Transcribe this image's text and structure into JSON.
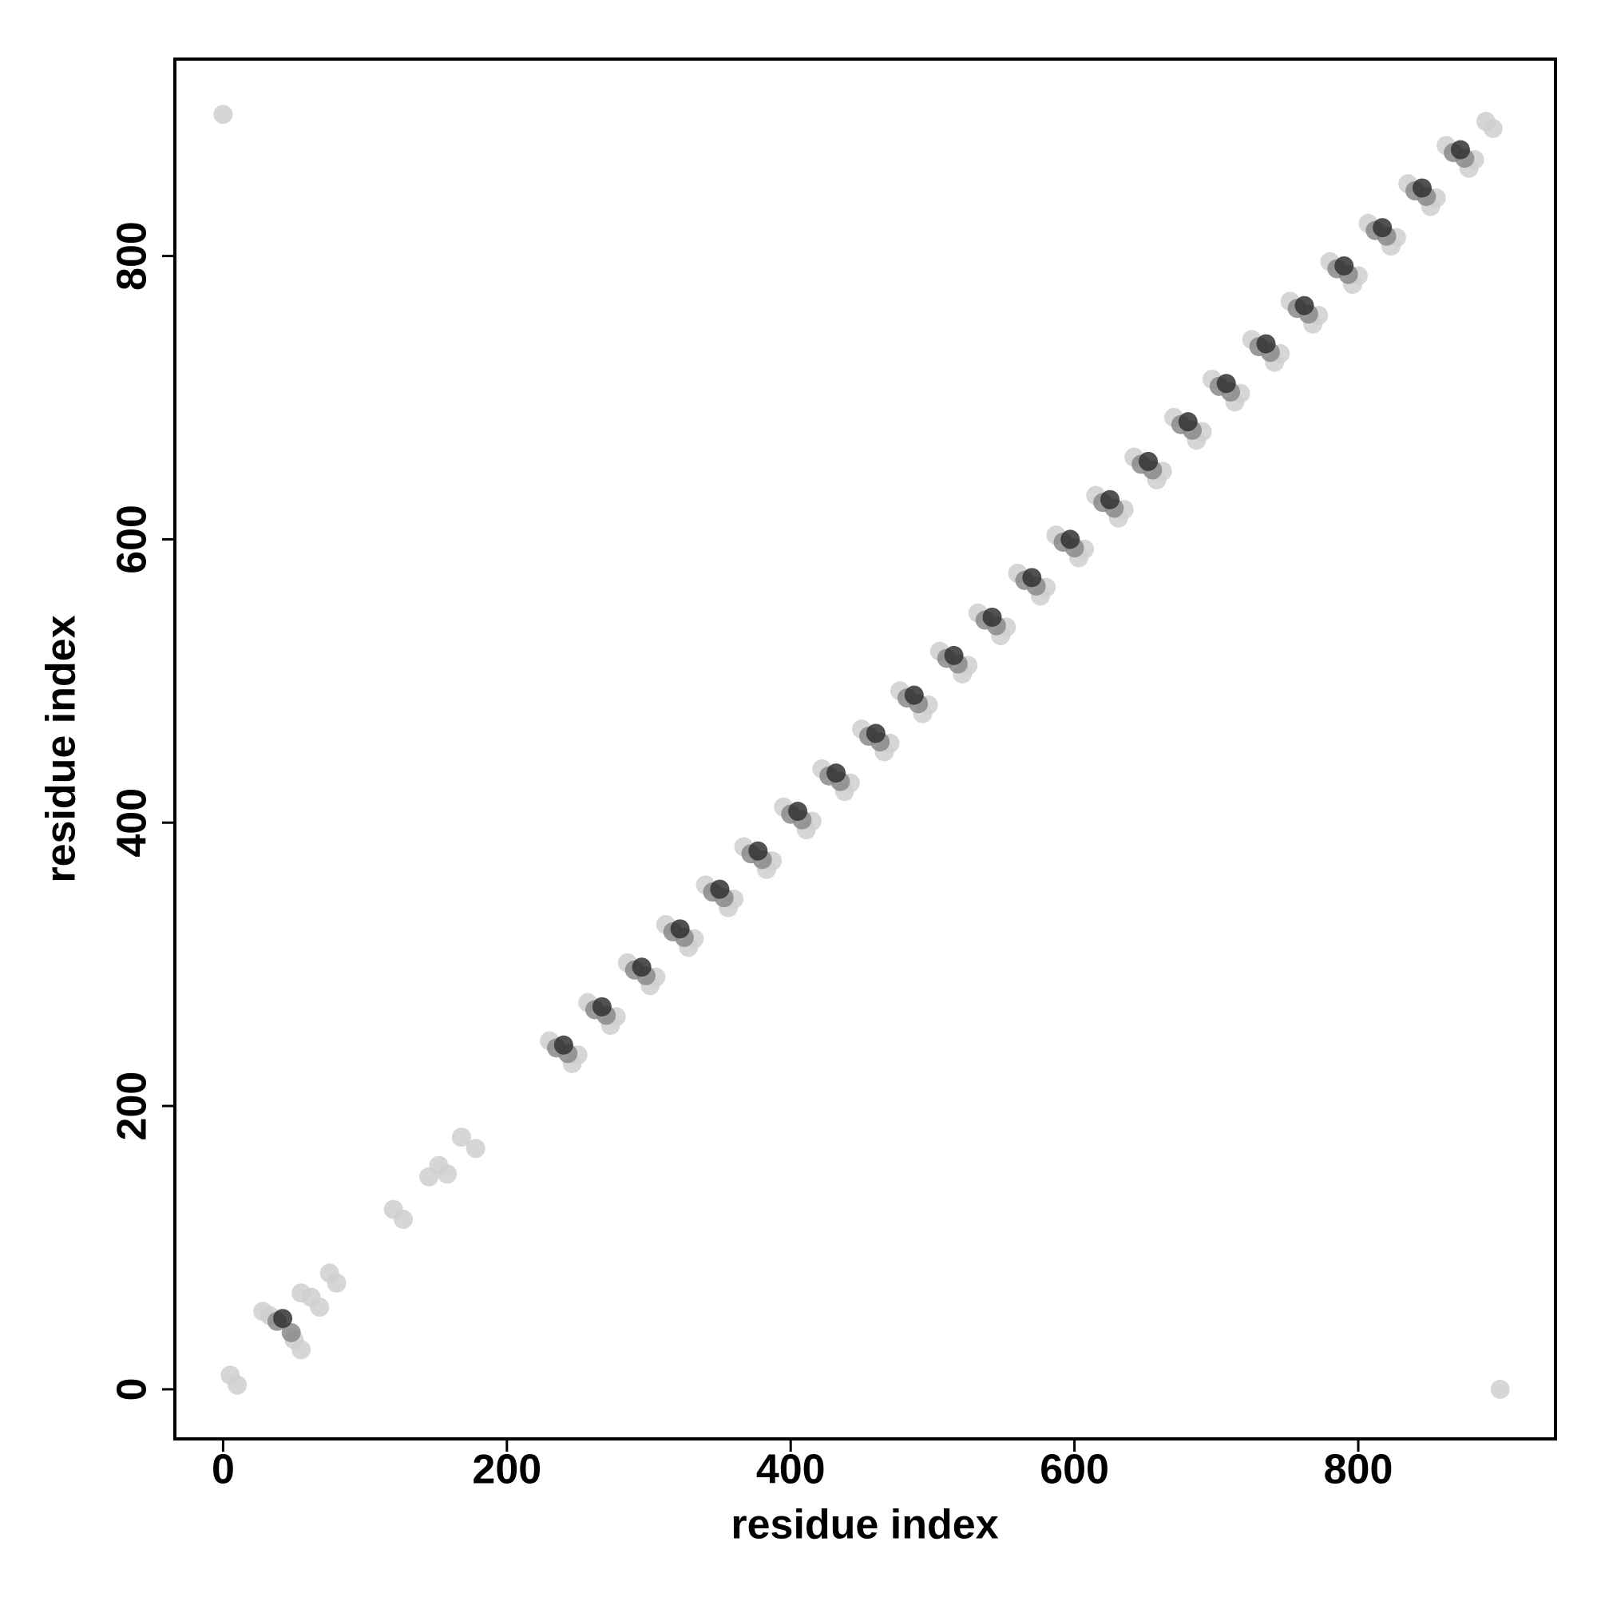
{
  "chart_data": {
    "type": "scatter",
    "x_label": "residue index",
    "y_label": "residue index",
    "xlim": [
      -34,
      939
    ],
    "ylim": [
      -35,
      939
    ],
    "xticks": [
      0,
      200,
      400,
      600,
      800
    ],
    "yticks": [
      0,
      200,
      400,
      600,
      800
    ],
    "grid": false,
    "series": [
      {
        "color": "#cfcfcf",
        "x": [
          0,
          900,
          5,
          10,
          28,
          33,
          50,
          55,
          55,
          62,
          68,
          75,
          80,
          120,
          127,
          145,
          152,
          158,
          168,
          178,
          230,
          246,
          250,
          257,
          273,
          277,
          285,
          301,
          305,
          312,
          328,
          332,
          340,
          356,
          360,
          367,
          383,
          387,
          395,
          411,
          415,
          422,
          438,
          442,
          450,
          466,
          470,
          477,
          493,
          497,
          505,
          521,
          525,
          532,
          548,
          552,
          560,
          576,
          580,
          587,
          603,
          607,
          615,
          631,
          635,
          642,
          658,
          662,
          670,
          686,
          690,
          697,
          713,
          717,
          725,
          741,
          745,
          752,
          768,
          772,
          780,
          796,
          800,
          807,
          823,
          827,
          835,
          851,
          855,
          862,
          878,
          882,
          895,
          890
        ],
        "y": [
          900,
          0,
          10,
          3,
          55,
          52,
          35,
          28,
          68,
          65,
          58,
          82,
          75,
          127,
          120,
          150,
          158,
          152,
          178,
          170,
          246,
          230,
          236,
          273,
          257,
          263,
          301,
          285,
          291,
          328,
          312,
          318,
          356,
          340,
          346,
          383,
          367,
          373,
          411,
          395,
          401,
          438,
          422,
          428,
          466,
          450,
          456,
          493,
          477,
          483,
          521,
          505,
          511,
          548,
          532,
          538,
          576,
          560,
          566,
          603,
          587,
          593,
          631,
          615,
          621,
          658,
          642,
          648,
          686,
          670,
          676,
          713,
          697,
          703,
          741,
          725,
          731,
          768,
          752,
          758,
          796,
          780,
          786,
          823,
          807,
          813,
          851,
          835,
          841,
          878,
          862,
          868,
          890,
          895
        ]
      },
      {
        "color": "#8a8a8a",
        "x": [
          38,
          48,
          235,
          262,
          290,
          317,
          345,
          372,
          400,
          427,
          455,
          482,
          510,
          537,
          565,
          592,
          620,
          647,
          675,
          702,
          730,
          757,
          785,
          812,
          840,
          867,
          243,
          270,
          298,
          325,
          353,
          380,
          408,
          435,
          463,
          490,
          518,
          545,
          573,
          600,
          628,
          655,
          683,
          710,
          738,
          765,
          793,
          820,
          848,
          875
        ],
        "y": [
          48,
          40,
          241,
          268,
          296,
          323,
          351,
          378,
          406,
          433,
          461,
          488,
          516,
          543,
          571,
          598,
          626,
          653,
          681,
          708,
          736,
          763,
          791,
          818,
          846,
          873,
          237,
          264,
          292,
          319,
          347,
          374,
          402,
          429,
          457,
          484,
          512,
          539,
          567,
          594,
          622,
          649,
          677,
          704,
          732,
          759,
          787,
          814,
          842,
          869
        ]
      },
      {
        "color": "#333333",
        "x": [
          42,
          240,
          267,
          295,
          322,
          350,
          377,
          405,
          432,
          460,
          487,
          515,
          542,
          570,
          597,
          625,
          652,
          680,
          707,
          735,
          762,
          790,
          817,
          845,
          872
        ],
        "y": [
          50,
          243,
          270,
          298,
          325,
          353,
          380,
          408,
          435,
          463,
          490,
          518,
          545,
          573,
          600,
          628,
          655,
          683,
          710,
          738,
          765,
          793,
          820,
          848,
          875
        ]
      }
    ]
  }
}
